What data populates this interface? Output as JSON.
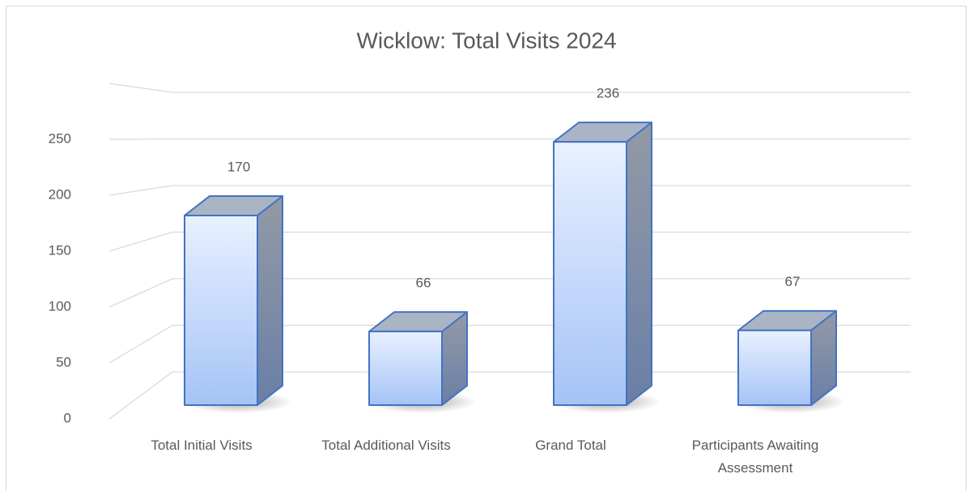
{
  "chart_data": {
    "type": "bar3d",
    "title": "Wicklow: Total Visits 2024",
    "categories": [
      "Total Initial Visits",
      "Total Additional Visits",
      "Grand Total",
      "Participants Awaiting Assessment"
    ],
    "values": [
      170,
      66,
      236,
      67
    ],
    "color": "#4472c4",
    "ylim": [
      0,
      300
    ],
    "yticks": [
      0,
      50,
      100,
      150,
      200,
      250
    ],
    "grid": true
  }
}
